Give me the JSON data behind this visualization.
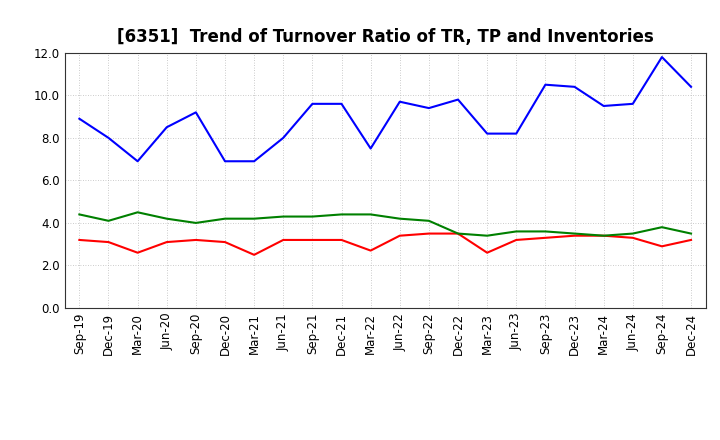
{
  "title": "[6351]  Trend of Turnover Ratio of TR, TP and Inventories",
  "xlabels": [
    "Sep-19",
    "Dec-19",
    "Mar-20",
    "Jun-20",
    "Sep-20",
    "Dec-20",
    "Mar-21",
    "Jun-21",
    "Sep-21",
    "Dec-21",
    "Mar-22",
    "Jun-22",
    "Sep-22",
    "Dec-22",
    "Mar-23",
    "Jun-23",
    "Sep-23",
    "Dec-23",
    "Mar-24",
    "Jun-24",
    "Sep-24",
    "Dec-24"
  ],
  "trade_receivables": [
    3.2,
    3.1,
    2.6,
    3.1,
    3.2,
    3.1,
    2.5,
    3.2,
    3.2,
    3.2,
    2.7,
    3.4,
    3.5,
    3.5,
    2.6,
    3.2,
    3.3,
    3.4,
    3.4,
    3.3,
    2.9,
    3.2
  ],
  "trade_payables": [
    8.9,
    8.0,
    6.9,
    8.5,
    9.2,
    6.9,
    6.9,
    8.0,
    9.6,
    9.6,
    7.5,
    9.7,
    9.4,
    9.8,
    8.2,
    8.2,
    10.5,
    10.4,
    9.5,
    9.6,
    11.8,
    10.4
  ],
  "inventories": [
    4.4,
    4.1,
    4.5,
    4.2,
    4.0,
    4.2,
    4.2,
    4.3,
    4.3,
    4.4,
    4.4,
    4.2,
    4.1,
    3.5,
    3.4,
    3.6,
    3.6,
    3.5,
    3.4,
    3.5,
    3.8,
    3.5
  ],
  "color_tr": "#FF0000",
  "color_tp": "#0000FF",
  "color_inv": "#008000",
  "ylim": [
    0.0,
    12.0
  ],
  "yticks": [
    0.0,
    2.0,
    4.0,
    6.0,
    8.0,
    10.0,
    12.0
  ],
  "background_color": "#FFFFFF",
  "grid_color": "#BBBBBB",
  "title_fontsize": 12,
  "legend_fontsize": 10,
  "tick_fontsize": 8.5
}
